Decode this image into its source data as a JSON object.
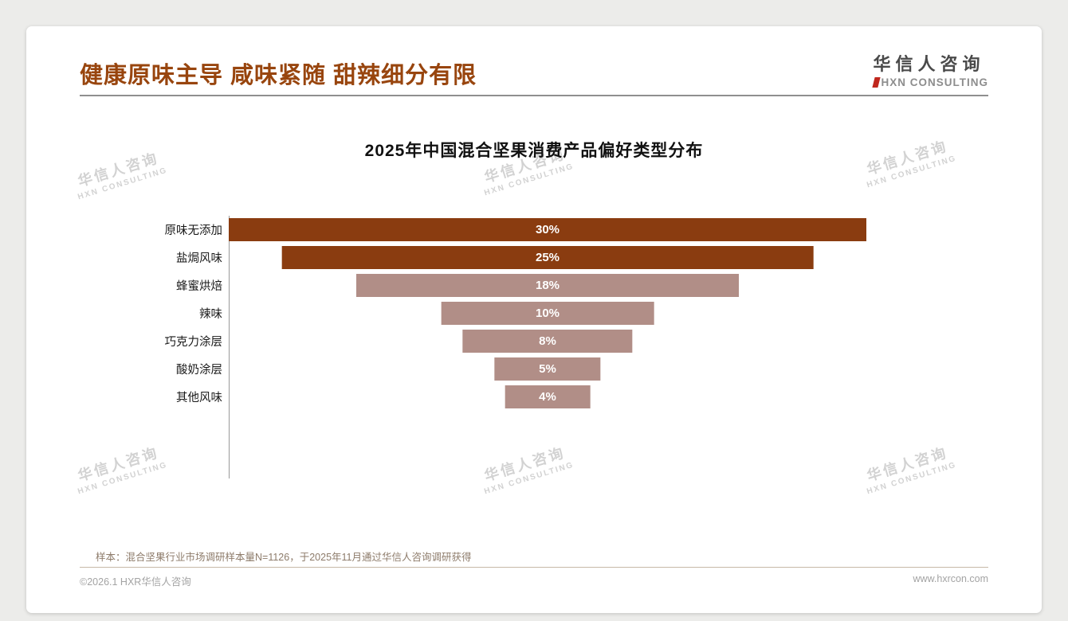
{
  "page": {
    "title": "健康原味主导 咸味紧随 甜辣细分有限"
  },
  "logo": {
    "cn": "华信人咨询",
    "en": "HXN CONSULTING"
  },
  "chart_data": {
    "type": "bar",
    "subtype": "horizontal-centered-funnel",
    "title": "2025年中国混合坚果消费产品偏好类型分布",
    "categories": [
      "原味无添加",
      "盐焗风味",
      "蜂蜜烘焙",
      "辣味",
      "巧克力涂层",
      "酸奶涂层",
      "其他风味"
    ],
    "values": [
      30,
      25,
      18,
      10,
      8,
      5,
      4
    ],
    "value_labels": [
      "30%",
      "25%",
      "18%",
      "10%",
      "8%",
      "5%",
      "4%"
    ],
    "bar_colors": [
      "#8a3c10",
      "#8a3c10",
      "#b18e87",
      "#b18e87",
      "#b18e87",
      "#b18e87",
      "#b18e87"
    ],
    "xlim": [
      0,
      30
    ],
    "grid": false,
    "legend": false
  },
  "note": "样本：混合坚果行业市场调研样本量N=1126，于2025年11月通过华信人咨询调研获得",
  "footer": {
    "left": "©2026.1 HXR华信人咨询",
    "right": "www.hxrcon.com"
  },
  "watermark": {
    "line1": "华信人咨询",
    "line2": "HXN CONSULTING"
  },
  "colors": {
    "title_accent": "#98450e",
    "logo_red": "#c0271d",
    "dark_bar": "#8a3c10",
    "light_bar": "#b18e87"
  }
}
